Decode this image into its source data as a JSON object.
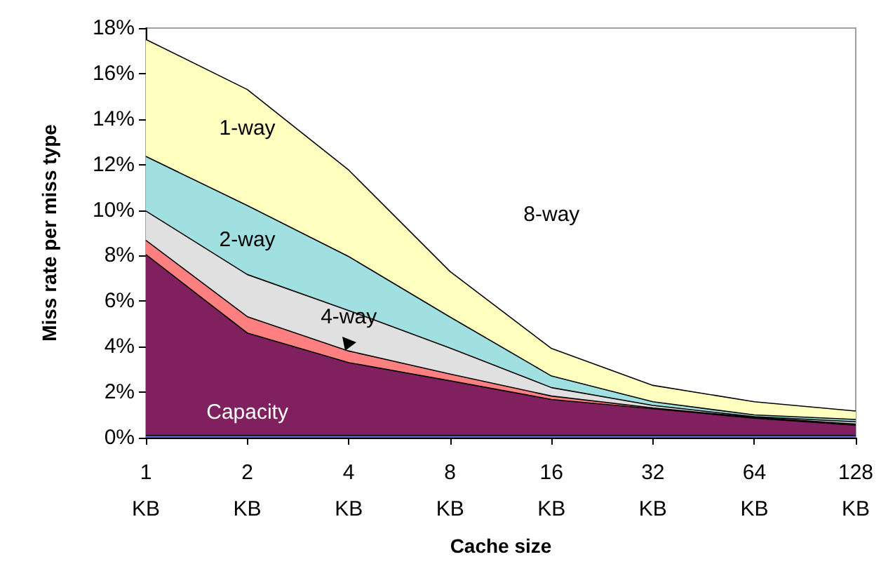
{
  "chart_data": {
    "type": "area",
    "stacked": true,
    "xlabel": "Cache size",
    "ylabel": "Miss rate per miss type",
    "categories": [
      "1 KB",
      "2 KB",
      "4 KB",
      "8 KB",
      "16 KB",
      "32 KB",
      "64 KB",
      "128 KB"
    ],
    "ylim": [
      0,
      18
    ],
    "yticks": [
      {
        "value": 0,
        "label": "0%"
      },
      {
        "value": 2,
        "label": "2%"
      },
      {
        "value": 4,
        "label": "4%"
      },
      {
        "value": 6,
        "label": "6%"
      },
      {
        "value": 8,
        "label": "8%"
      },
      {
        "value": 10,
        "label": "10%"
      },
      {
        "value": 12,
        "label": "12%"
      },
      {
        "value": 14,
        "label": "14%"
      },
      {
        "value": 16,
        "label": "16%"
      },
      {
        "value": 18,
        "label": "18%"
      }
    ],
    "grid": false,
    "legend": false,
    "annotations": [
      "8-way"
    ],
    "series": [
      {
        "color": "#6060d0",
        "values": [
          0.1,
          0.1,
          0.1,
          0.1,
          0.1,
          0.1,
          0.1,
          0.1
        ]
      },
      {
        "name": "Capacity",
        "color": "#80205f",
        "values": [
          7.95,
          4.5,
          3.2,
          2.4,
          1.58,
          1.17,
          0.76,
          0.45
        ]
      },
      {
        "color": "#ff8080",
        "values": [
          0.62,
          0.72,
          0.51,
          0.3,
          0.15,
          0.04,
          0.03,
          0.05
        ]
      },
      {
        "name": "4-way",
        "color": "#e0e0e0",
        "values": [
          1.29,
          1.85,
          1.78,
          1.14,
          0.37,
          0.11,
          0.03,
          0.1
        ]
      },
      {
        "name": "2-way",
        "color": "#a0e0e0",
        "values": [
          2.4,
          3.03,
          2.37,
          1.36,
          0.51,
          0.16,
          0.08,
          0.1
        ]
      },
      {
        "name": "1-way",
        "color": "#ffffc0",
        "values": [
          5.14,
          5.1,
          3.8,
          2.0,
          1.21,
          0.72,
          0.58,
          0.37
        ]
      }
    ]
  }
}
